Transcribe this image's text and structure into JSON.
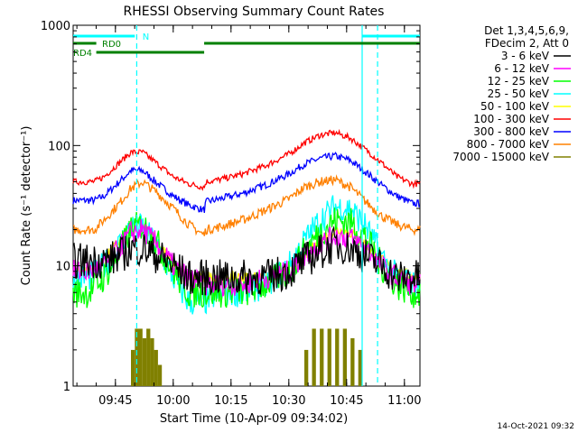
{
  "chart_data": {
    "type": "line",
    "title": "RHESSI Observing Summary Count Rates",
    "ylabel": "Count Rate (s⁻¹ detector⁻¹)",
    "xlabel": "Start Time (10-Apr-09 09:34:02)",
    "yscale": "log",
    "ylim": [
      1,
      1000
    ],
    "xlim_minutes": [
      0,
      90
    ],
    "x_tick_labels": [
      "09:45",
      "10:00",
      "10:15",
      "10:30",
      "10:45",
      "11:00"
    ],
    "x_tick_minutes": [
      10.97,
      25.97,
      40.97,
      55.97,
      70.97,
      85.97
    ],
    "y_tick_labels": [
      "1",
      "10",
      "100",
      "1000"
    ],
    "y_tick_values": [
      1,
      10,
      100,
      1000
    ],
    "grid": false,
    "legend_placement": "right",
    "legend_header": [
      "Det 1,3,4,5,6,9,",
      "FDecim 2, Att 0"
    ],
    "date_stamp": "14-Oct-2021 09:32",
    "series": [
      {
        "name": "3 - 6 keV",
        "color": "#000000",
        "x": [
          0,
          4,
          8,
          12,
          15,
          18,
          22,
          26,
          30,
          34,
          38,
          44,
          50,
          56,
          60,
          64,
          68,
          72,
          76,
          80,
          84,
          88,
          90
        ],
        "y": [
          11,
          11,
          11,
          12,
          14,
          14,
          12,
          10,
          8,
          8,
          8,
          8,
          8,
          9,
          11,
          13,
          15,
          14,
          12,
          10,
          8,
          8,
          8
        ]
      },
      {
        "name": "6 - 12 keV",
        "color": "#ff00ff",
        "x": [
          0,
          4,
          8,
          12,
          15,
          18,
          22,
          26,
          30,
          34,
          38,
          44,
          50,
          56,
          60,
          64,
          68,
          72,
          76,
          80,
          84,
          88,
          90
        ],
        "y": [
          9,
          9,
          10,
          14,
          19,
          20,
          15,
          10,
          8,
          7,
          7,
          7,
          8,
          9,
          12,
          15,
          18,
          17,
          14,
          10,
          8,
          7,
          7
        ]
      },
      {
        "name": "12 - 25 keV",
        "color": "#00ff00",
        "x": [
          0,
          4,
          8,
          12,
          15,
          18,
          22,
          26,
          30,
          34,
          38,
          44,
          50,
          56,
          60,
          64,
          68,
          72,
          76,
          80,
          84,
          88,
          90
        ],
        "y": [
          6,
          6,
          8,
          13,
          20,
          22,
          15,
          9,
          6,
          6,
          6,
          6,
          7,
          9,
          13,
          19,
          24,
          23,
          17,
          10,
          7,
          6,
          6
        ]
      },
      {
        "name": "25 - 50 keV",
        "color": "#00ffff",
        "x": [
          0,
          4,
          8,
          12,
          15,
          18,
          22,
          26,
          30,
          34,
          38,
          44,
          50,
          56,
          60,
          64,
          68,
          72,
          76,
          80,
          84,
          88,
          90
        ],
        "y": [
          8,
          8,
          10,
          15,
          21,
          21,
          14,
          8,
          5,
          5,
          6,
          6,
          7,
          10,
          16,
          24,
          31,
          30,
          21,
          12,
          8,
          7,
          7
        ]
      },
      {
        "name": "50 - 100 keV",
        "color": "#ffff00",
        "x": [
          0,
          4,
          8,
          12,
          15,
          18,
          22,
          26,
          30,
          34,
          38,
          44,
          50,
          56,
          60,
          64,
          68,
          72,
          76,
          80,
          84,
          88,
          90
        ],
        "y": [
          9,
          9,
          11,
          16,
          22,
          22,
          16,
          10,
          8,
          8,
          8,
          8,
          8,
          9,
          12,
          16,
          20,
          19,
          15,
          11,
          9,
          8,
          8
        ]
      },
      {
        "name": "100 - 300 keV",
        "color": "#ff0000",
        "x": [
          0,
          4,
          5.5,
          8,
          12,
          15,
          18,
          22,
          26,
          30,
          34,
          34.5,
          38,
          44,
          50,
          56,
          60,
          64,
          68,
          72,
          76,
          80,
          84,
          88,
          90
        ],
        "y": [
          50,
          50,
          50,
          55,
          72,
          88,
          88,
          70,
          55,
          48,
          45,
          50,
          52,
          58,
          68,
          85,
          105,
          122,
          128,
          115,
          92,
          72,
          55,
          48,
          48
        ]
      },
      {
        "name": "300 - 800 keV",
        "color": "#0000ff",
        "x": [
          0,
          4,
          5.5,
          8,
          12,
          15,
          18,
          22,
          26,
          30,
          34,
          34.5,
          38,
          44,
          50,
          56,
          60,
          64,
          68,
          72,
          76,
          80,
          84,
          88,
          90
        ],
        "y": [
          35,
          35,
          35,
          38,
          50,
          62,
          62,
          48,
          38,
          32,
          29,
          34,
          36,
          40,
          47,
          58,
          70,
          78,
          82,
          75,
          60,
          47,
          38,
          33,
          33
        ]
      },
      {
        "name": "800 - 7000 keV",
        "color": "#ff8000",
        "x": [
          0,
          4,
          5.5,
          8,
          12,
          15,
          18,
          22,
          26,
          30,
          34,
          34.5,
          38,
          44,
          50,
          56,
          60,
          64,
          68,
          72,
          76,
          80,
          84,
          88,
          90
        ],
        "y": [
          20,
          20,
          20,
          24,
          33,
          44,
          50,
          40,
          30,
          22,
          18,
          20,
          21,
          24,
          29,
          36,
          45,
          50,
          52,
          45,
          34,
          26,
          22,
          20,
          20
        ]
      },
      {
        "name": "7000 - 15000 keV",
        "color": "#808000",
        "x": [
          15,
          16,
          17,
          18,
          19,
          20,
          21,
          22,
          60,
          62,
          64,
          66,
          68,
          70,
          72,
          74
        ],
        "y": [
          2,
          3,
          3,
          2.5,
          3,
          2.5,
          2,
          1.5,
          2,
          3,
          3,
          3,
          3,
          3,
          2.5,
          2
        ]
      }
    ],
    "attenuator_labels": [
      "N",
      "RD0",
      "RD4"
    ]
  }
}
